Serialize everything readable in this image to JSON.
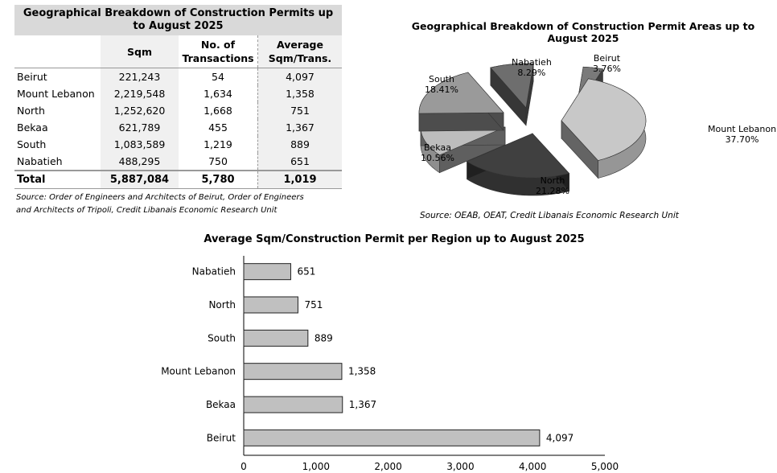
{
  "table": {
    "title": "Geographical Breakdown of Construction Permits up to August 2025",
    "headers": [
      "",
      "Sqm",
      "No. of Transactions",
      "Average Sqm/Trans."
    ],
    "rows": [
      {
        "region": "Beirut",
        "sqm": "221,243",
        "transactions": "54",
        "avg": "4,097"
      },
      {
        "region": "Mount Lebanon",
        "sqm": "2,219,548",
        "transactions": "1,634",
        "avg": "1,358"
      },
      {
        "region": "North",
        "sqm": "1,252,620",
        "transactions": "1,668",
        "avg": "751"
      },
      {
        "region": "Bekaa",
        "sqm": "621,789",
        "transactions": "455",
        "avg": "1,367"
      },
      {
        "region": "South",
        "sqm": "1,083,589",
        "transactions": "1,219",
        "avg": "889"
      },
      {
        "region": "Nabatieh",
        "sqm": "488,295",
        "transactions": "750",
        "avg": "651"
      }
    ],
    "total": {
      "region": "Total",
      "sqm": "5,887,084",
      "transactions": "5,780",
      "avg": "1,019"
    },
    "source_line1": "Source: Order of Engineers and Architects of Beirut, Order of Engineers",
    "source_line2": "and Architects of Tripoli, Credit Libanais Economic Research Unit"
  },
  "chart_data": [
    {
      "type": "pie",
      "title": "Geographical Breakdown of Construction Permit Areas up to August 2025",
      "categories": [
        "Beirut",
        "Mount Lebanon",
        "North",
        "Bekaa",
        "South",
        "Nabatieh"
      ],
      "values": [
        3.76,
        37.7,
        21.28,
        10.56,
        18.41,
        8.29
      ],
      "labels": [
        "3.76%",
        "37.70%",
        "21.28%",
        "10.56%",
        "18.41%",
        "8.29%"
      ],
      "colors": [
        "#7a7a7a",
        "#c8c8c8",
        "#404040",
        "#bdbdbd",
        "#9a9a9a",
        "#6e6e6e"
      ],
      "source": "Source: OEAB, OEAT, Credit Libanais Economic Research Unit"
    },
    {
      "type": "bar",
      "orientation": "horizontal",
      "title": "Average Sqm/Construction Permit per Region up to August 2025",
      "categories": [
        "Nabatieh",
        "North",
        "South",
        "Mount Lebanon",
        "Bekaa",
        "Beirut"
      ],
      "values": [
        651,
        751,
        889,
        1358,
        1367,
        4097
      ],
      "value_labels": [
        "651",
        "751",
        "889",
        "1,358",
        "1,367",
        "4,097"
      ],
      "xlim": [
        0,
        5000
      ],
      "xticks": [
        0,
        1000,
        2000,
        3000,
        4000,
        5000
      ],
      "xtick_labels": [
        "0",
        "1,000",
        "2,000",
        "3,000",
        "4,000",
        "5,000"
      ],
      "bar_color": "#c0c0c0",
      "grid": false
    }
  ]
}
